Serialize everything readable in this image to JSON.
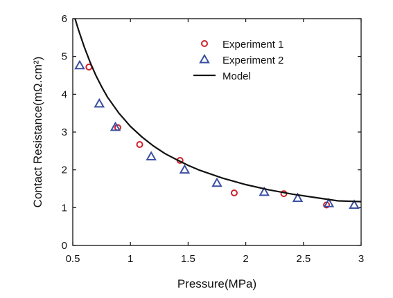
{
  "chart_data": {
    "type": "scatter",
    "xlabel": "Pressure(MPa)",
    "ylabel": "Contact Resistance(mΩ.cm²)",
    "xlim": [
      0.5,
      3
    ],
    "ylim": [
      0,
      6
    ],
    "x_ticks": [
      "0.5",
      "1",
      "1.5",
      "2",
      "2.5",
      "3"
    ],
    "y_ticks": [
      "0",
      "1",
      "2",
      "3",
      "4",
      "5",
      "6"
    ],
    "grid": false,
    "legend_position": "top-right",
    "series": [
      {
        "name": "Experiment 1",
        "marker": "circle",
        "color": "#d0202a",
        "x": [
          0.64,
          0.89,
          1.08,
          1.43,
          1.9,
          2.33,
          2.7
        ],
        "y": [
          4.72,
          3.12,
          2.67,
          2.25,
          1.39,
          1.37,
          1.07
        ]
      },
      {
        "name": "Experiment 2",
        "marker": "triangle",
        "color": "#3a4fa0",
        "x": [
          0.56,
          0.73,
          0.87,
          1.18,
          1.47,
          1.75,
          2.16,
          2.45,
          2.72,
          2.94
        ],
        "y": [
          4.76,
          3.75,
          3.13,
          2.35,
          2.0,
          1.65,
          1.41,
          1.25,
          1.11,
          1.07
        ]
      },
      {
        "name": "Model",
        "marker": "line",
        "color": "#111111",
        "x": [
          0.52,
          0.55,
          0.6,
          0.65,
          0.7,
          0.75,
          0.8,
          0.9,
          1.0,
          1.1,
          1.2,
          1.3,
          1.4,
          1.5,
          1.6,
          1.8,
          2.0,
          2.2,
          2.4,
          2.6,
          2.8,
          3.0
        ],
        "y": [
          6.0,
          5.7,
          5.25,
          4.85,
          4.5,
          4.2,
          3.93,
          3.5,
          3.15,
          2.87,
          2.63,
          2.43,
          2.27,
          2.12,
          1.99,
          1.78,
          1.61,
          1.47,
          1.36,
          1.27,
          1.18,
          1.16
        ]
      }
    ]
  }
}
